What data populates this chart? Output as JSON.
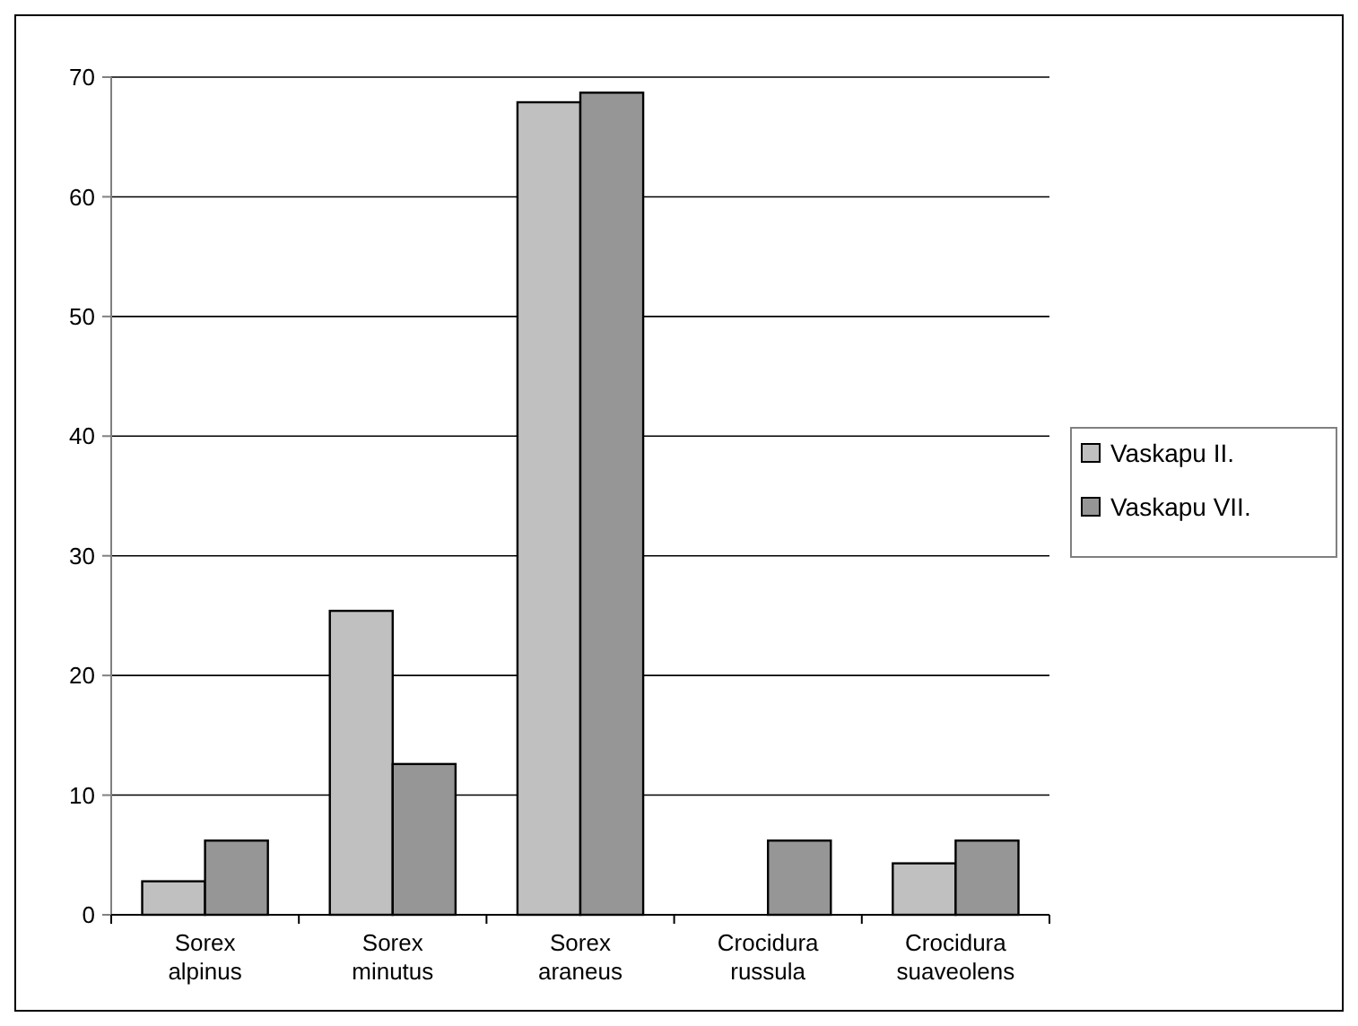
{
  "chart_data": {
    "type": "bar",
    "categories": [
      "Sorex alpinus",
      "Sorex minutus",
      "Sorex araneus",
      "Crocidura russula",
      "Crocidura suaveolens"
    ],
    "series": [
      {
        "name": "Vaskapu II.",
        "color": "#c0c0c0",
        "values": [
          2.8,
          25.4,
          67.9,
          0,
          4.3
        ]
      },
      {
        "name": "Vaskapu VII.",
        "color": "#969696",
        "values": [
          6.2,
          12.6,
          68.7,
          6.2,
          6.2
        ]
      }
    ],
    "ylim": [
      0,
      70
    ],
    "yticks": [
      0,
      10,
      20,
      30,
      40,
      50,
      60,
      70
    ],
    "grid": "y",
    "legend": "right"
  }
}
